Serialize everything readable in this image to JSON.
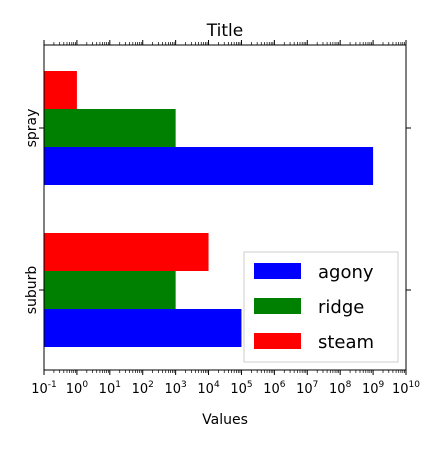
{
  "chart_data": {
    "type": "bar",
    "orientation": "horizontal",
    "title": "Title",
    "xlabel": "Values",
    "ylabel": "",
    "x_scale": "log",
    "xlim": [
      0.1,
      10000000000
    ],
    "x_ticks": [
      {
        "value": 0.1,
        "base": "10",
        "exp": "-1"
      },
      {
        "value": 1,
        "base": "10",
        "exp": "0"
      },
      {
        "value": 10,
        "base": "10",
        "exp": "1"
      },
      {
        "value": 100,
        "base": "10",
        "exp": "2"
      },
      {
        "value": 1000,
        "base": "10",
        "exp": "3"
      },
      {
        "value": 10000,
        "base": "10",
        "exp": "4"
      },
      {
        "value": 100000,
        "base": "10",
        "exp": "5"
      },
      {
        "value": 1000000,
        "base": "10",
        "exp": "6"
      },
      {
        "value": 10000000,
        "base": "10",
        "exp": "7"
      },
      {
        "value": 100000000,
        "base": "10",
        "exp": "8"
      },
      {
        "value": 1000000000,
        "base": "10",
        "exp": "9"
      },
      {
        "value": 10000000000,
        "base": "10",
        "exp": "10"
      }
    ],
    "categories": [
      "suburb",
      "spray"
    ],
    "series": [
      {
        "name": "agony",
        "color": "#0000ff",
        "values": [
          100000,
          1000000000
        ]
      },
      {
        "name": "ridge",
        "color": "#008000",
        "values": [
          1000,
          1000
        ]
      },
      {
        "name": "steam",
        "color": "#ff0000",
        "values": [
          10000,
          1
        ]
      }
    ],
    "legend_position": "lower-right",
    "grid": false
  }
}
